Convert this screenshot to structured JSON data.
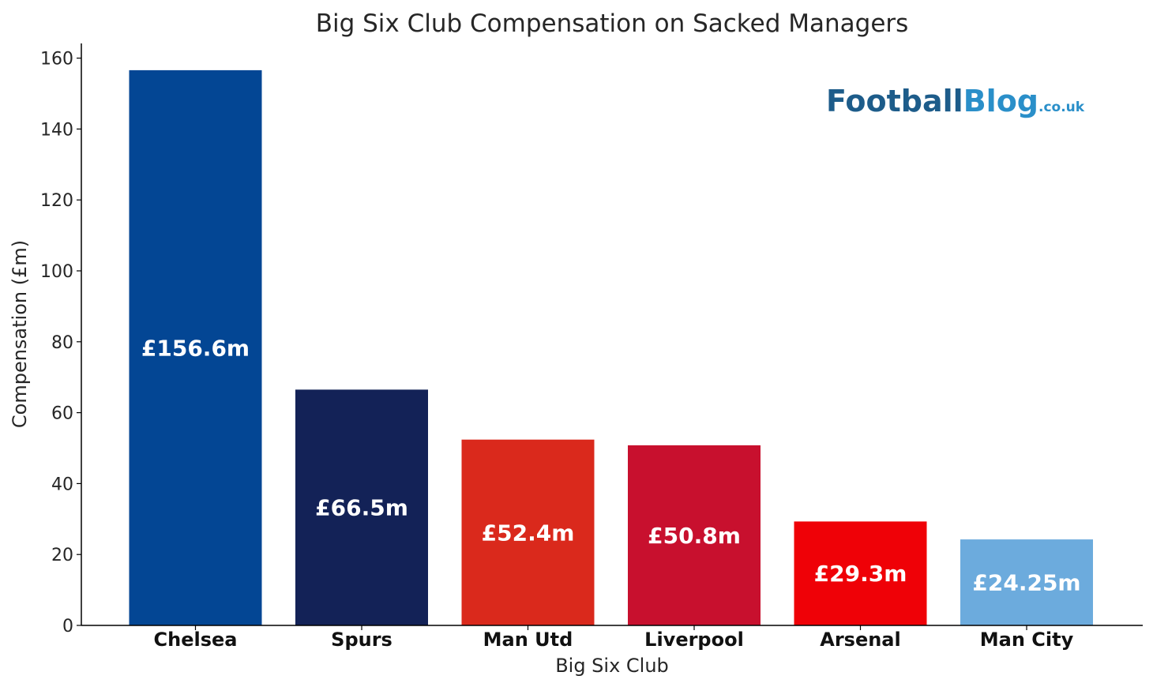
{
  "chart_data": {
    "type": "bar",
    "title": "Big Six Club Compensation on Sacked Managers",
    "xlabel": "Big Six Club",
    "ylabel": "Compensation (£m)",
    "ylim": [
      0,
      164
    ],
    "yticks": [
      0,
      20,
      40,
      60,
      80,
      100,
      120,
      140,
      160
    ],
    "categories": [
      "Chelsea",
      "Spurs",
      "Man Utd",
      "Liverpool",
      "Arsenal",
      "Man City"
    ],
    "values": [
      156.6,
      66.5,
      52.4,
      50.8,
      29.3,
      24.25
    ],
    "data_labels": [
      "£156.6m",
      "£66.5m",
      "£52.4m",
      "£50.8m",
      "£29.3m",
      "£24.25m"
    ],
    "colors": [
      "#034694",
      "#132257",
      "#DA291C",
      "#C8102E",
      "#EF0107",
      "#6CABDD"
    ],
    "grid": false,
    "legend": "none"
  },
  "watermark": {
    "main": "Football",
    "accent": "Blog",
    "suffix": ".co.uk",
    "main_color": "#1d5c8a",
    "accent_color": "#2a8fc9"
  }
}
